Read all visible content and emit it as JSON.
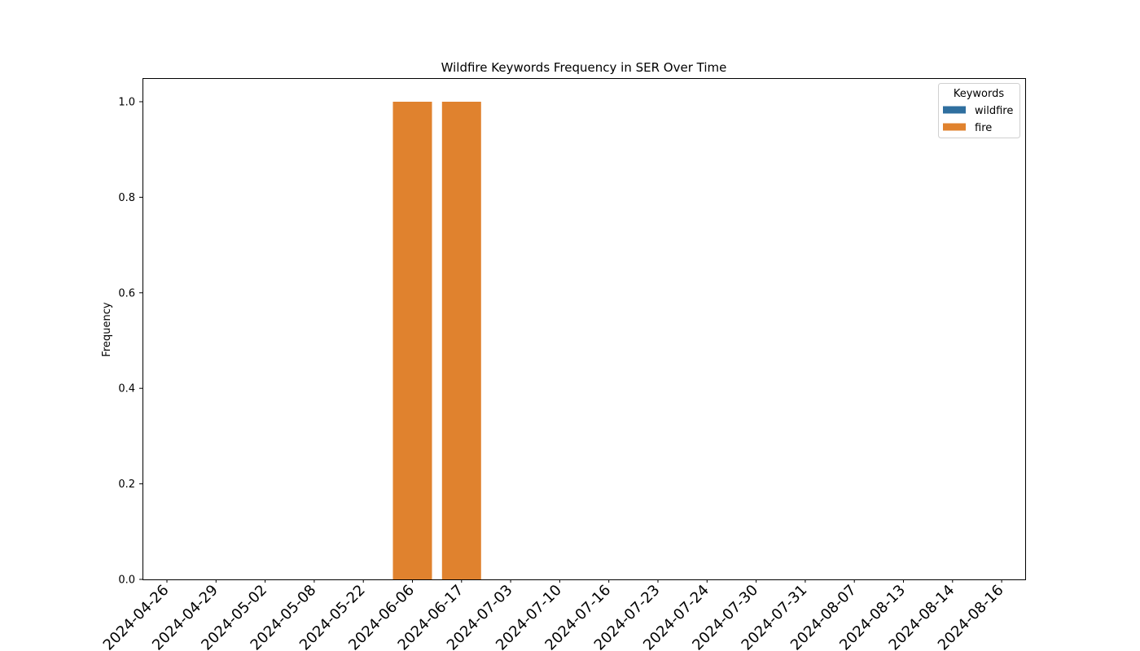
{
  "chart_data": {
    "type": "bar",
    "title": "Wildfire Keywords Frequency in SER Over Time",
    "xlabel": "",
    "ylabel": "Frequency",
    "ylim": [
      0,
      1.05
    ],
    "yticks": [
      "0.0",
      "0.2",
      "0.4",
      "0.6",
      "0.8",
      "1.0"
    ],
    "grid": false,
    "legend": {
      "title": "Keywords",
      "placement": "top-right"
    },
    "categories": [
      "2024-04-26",
      "2024-04-29",
      "2024-05-02",
      "2024-05-08",
      "2024-05-22",
      "2024-06-06",
      "2024-06-17",
      "2024-07-03",
      "2024-07-10",
      "2024-07-16",
      "2024-07-23",
      "2024-07-24",
      "2024-07-30",
      "2024-07-31",
      "2024-08-07",
      "2024-08-13",
      "2024-08-14",
      "2024-08-16"
    ],
    "series": [
      {
        "name": "wildfire",
        "color": "#2f6f9f",
        "values": [
          0,
          0,
          0,
          0,
          0,
          0,
          0,
          0,
          0,
          0,
          0,
          0,
          0,
          0,
          0,
          0,
          0,
          0
        ]
      },
      {
        "name": "fire",
        "color": "#e0822e",
        "values": [
          0,
          0,
          0,
          0,
          0,
          1,
          1,
          0,
          0,
          0,
          0,
          0,
          0,
          0,
          0,
          0,
          0,
          0
        ]
      }
    ]
  }
}
